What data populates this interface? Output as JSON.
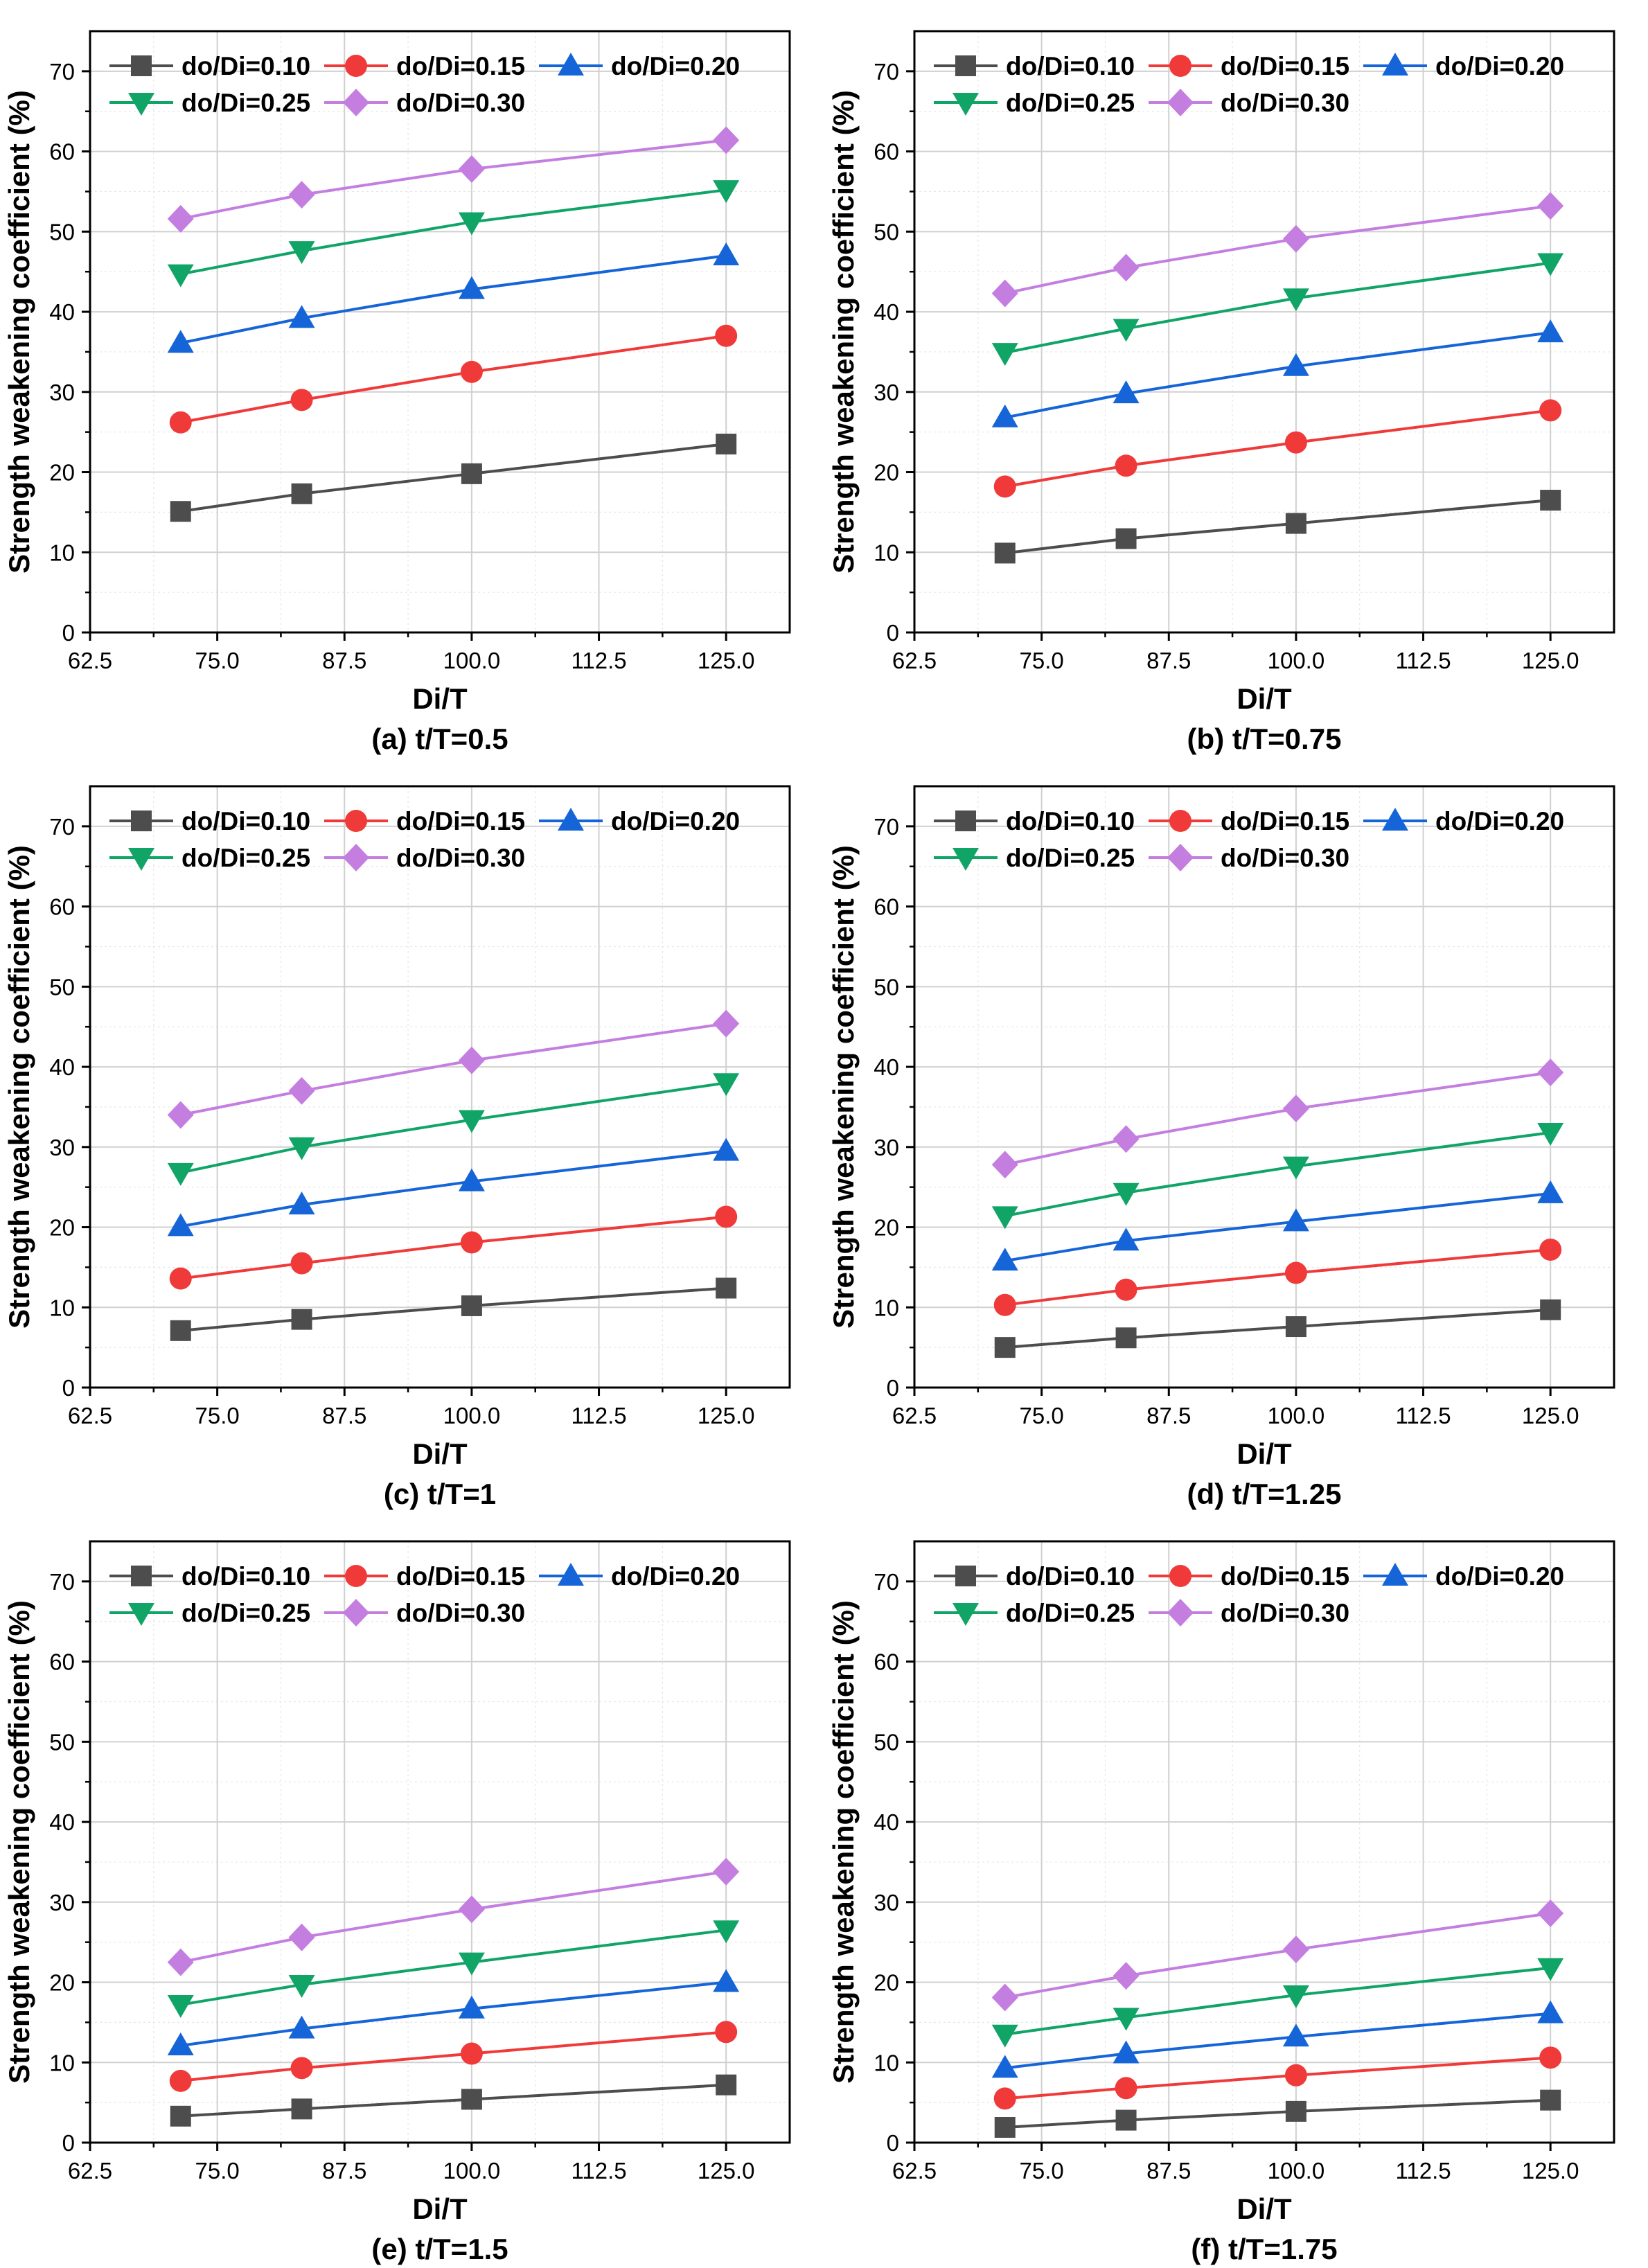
{
  "figure": {
    "xlabel": "Di/T",
    "ylabel": "Strength weakening coefficient (%)",
    "xlim": [
      62.5,
      131.25
    ],
    "ylim": [
      0,
      75
    ],
    "x_ticks": [
      "62.5",
      "75.0",
      "87.5",
      "100.0",
      "112.5",
      "125.0"
    ],
    "y_ticks": [
      "0",
      "10",
      "20",
      "30",
      "40",
      "50",
      "60",
      "70"
    ],
    "x_tick_values": [
      62.5,
      75,
      87.5,
      100,
      112.5,
      125
    ],
    "y_tick_values": [
      0,
      10,
      20,
      30,
      40,
      50,
      60,
      70
    ],
    "legend_position": "top-left",
    "colors": {
      "do/Di=0.10": "#4d4d4d",
      "do/Di=0.15": "#f03a3a",
      "do/Di=0.20": "#1565d8",
      "do/Di=0.25": "#10a567",
      "do/Di=0.30": "#c47ee0",
      "grid_major": "#d0d0d0",
      "grid_minor": "#e6e6e6",
      "axis": "#000000"
    },
    "markers": {
      "do/Di=0.10": "square",
      "do/Di=0.15": "circle",
      "do/Di=0.20": "triangle-up",
      "do/Di=0.25": "triangle-down",
      "do/Di=0.30": "diamond"
    }
  },
  "chart_data": [
    {
      "type": "line",
      "title": "(a) t/T=0.5",
      "xlabel": "Di/T",
      "ylabel": "Strength weakening coefficient (%)",
      "xlim": [
        62.5,
        131.25
      ],
      "ylim": [
        0,
        75
      ],
      "x": [
        71.4,
        83.3,
        100,
        125
      ],
      "series": [
        {
          "name": "do/Di=0.10",
          "values": [
            15.1,
            17.3,
            19.8,
            23.5
          ]
        },
        {
          "name": "do/Di=0.15",
          "values": [
            26.2,
            29.0,
            32.5,
            37.0
          ]
        },
        {
          "name": "do/Di=0.20",
          "values": [
            36.1,
            39.2,
            42.8,
            47.0
          ]
        },
        {
          "name": "do/Di=0.25",
          "values": [
            44.7,
            47.6,
            51.2,
            55.2
          ]
        },
        {
          "name": "do/Di=0.30",
          "values": [
            51.6,
            54.6,
            57.8,
            61.4
          ]
        }
      ]
    },
    {
      "type": "line",
      "title": "(b) t/T=0.75",
      "xlabel": "Di/T",
      "ylabel": "Strength weakening coefficient (%)",
      "xlim": [
        62.5,
        131.25
      ],
      "ylim": [
        0,
        75
      ],
      "x": [
        71.4,
        83.3,
        100,
        125
      ],
      "series": [
        {
          "name": "do/Di=0.10",
          "values": [
            9.9,
            11.7,
            13.6,
            16.5
          ]
        },
        {
          "name": "do/Di=0.15",
          "values": [
            18.2,
            20.8,
            23.7,
            27.7
          ]
        },
        {
          "name": "do/Di=0.20",
          "values": [
            26.8,
            29.8,
            33.2,
            37.4
          ]
        },
        {
          "name": "do/Di=0.25",
          "values": [
            34.9,
            37.9,
            41.7,
            46.1
          ]
        },
        {
          "name": "do/Di=0.30",
          "values": [
            42.3,
            45.5,
            49.1,
            53.2
          ]
        }
      ]
    },
    {
      "type": "line",
      "title": "(c) t/T=1",
      "xlabel": "Di/T",
      "ylabel": "Strength weakening coefficient (%)",
      "xlim": [
        62.5,
        131.25
      ],
      "ylim": [
        0,
        75
      ],
      "x": [
        71.4,
        83.3,
        100,
        125
      ],
      "series": [
        {
          "name": "do/Di=0.10",
          "values": [
            7.1,
            8.5,
            10.2,
            12.4
          ]
        },
        {
          "name": "do/Di=0.15",
          "values": [
            13.6,
            15.5,
            18.1,
            21.3
          ]
        },
        {
          "name": "do/Di=0.20",
          "values": [
            20.1,
            22.8,
            25.7,
            29.5
          ]
        },
        {
          "name": "do/Di=0.25",
          "values": [
            26.8,
            30.0,
            33.4,
            38.0
          ]
        },
        {
          "name": "do/Di=0.30",
          "values": [
            34.0,
            37.0,
            40.8,
            45.4
          ]
        }
      ]
    },
    {
      "type": "line",
      "title": "(d) t/T=1.25",
      "xlabel": "Di/T",
      "ylabel": "Strength weakening coefficient (%)",
      "xlim": [
        62.5,
        131.25
      ],
      "ylim": [
        0,
        75
      ],
      "x": [
        71.4,
        83.3,
        100,
        125
      ],
      "series": [
        {
          "name": "do/Di=0.10",
          "values": [
            5.0,
            6.2,
            7.6,
            9.7
          ]
        },
        {
          "name": "do/Di=0.15",
          "values": [
            10.3,
            12.2,
            14.3,
            17.2
          ]
        },
        {
          "name": "do/Di=0.20",
          "values": [
            15.8,
            18.3,
            20.7,
            24.2
          ]
        },
        {
          "name": "do/Di=0.25",
          "values": [
            21.4,
            24.3,
            27.6,
            31.8
          ]
        },
        {
          "name": "do/Di=0.30",
          "values": [
            27.8,
            31.0,
            34.8,
            39.3
          ]
        }
      ]
    },
    {
      "type": "line",
      "title": "(e) t/T=1.5",
      "xlabel": "Di/T",
      "ylabel": "Strength weakening coefficient (%)",
      "xlim": [
        62.5,
        131.25
      ],
      "ylim": [
        0,
        75
      ],
      "x": [
        71.4,
        83.3,
        100,
        125
      ],
      "series": [
        {
          "name": "do/Di=0.10",
          "values": [
            3.3,
            4.2,
            5.4,
            7.2
          ]
        },
        {
          "name": "do/Di=0.15",
          "values": [
            7.7,
            9.3,
            11.1,
            13.8
          ]
        },
        {
          "name": "do/Di=0.20",
          "values": [
            12.1,
            14.2,
            16.7,
            20.0
          ]
        },
        {
          "name": "do/Di=0.25",
          "values": [
            17.2,
            19.7,
            22.5,
            26.5
          ]
        },
        {
          "name": "do/Di=0.30",
          "values": [
            22.5,
            25.6,
            29.1,
            33.8
          ]
        }
      ]
    },
    {
      "type": "line",
      "title": "(f) t/T=1.75",
      "xlabel": "Di/T",
      "ylabel": "Strength weakening coefficient (%)",
      "xlim": [
        62.5,
        131.25
      ],
      "ylim": [
        0,
        75
      ],
      "x": [
        71.4,
        83.3,
        100,
        125
      ],
      "series": [
        {
          "name": "do/Di=0.10",
          "values": [
            1.9,
            2.8,
            3.9,
            5.3
          ]
        },
        {
          "name": "do/Di=0.15",
          "values": [
            5.5,
            6.8,
            8.4,
            10.6
          ]
        },
        {
          "name": "do/Di=0.20",
          "values": [
            9.3,
            11.1,
            13.2,
            16.1
          ]
        },
        {
          "name": "do/Di=0.25",
          "values": [
            13.5,
            15.6,
            18.4,
            21.8
          ]
        },
        {
          "name": "do/Di=0.30",
          "values": [
            18.1,
            20.8,
            24.1,
            28.6
          ]
        }
      ]
    }
  ]
}
